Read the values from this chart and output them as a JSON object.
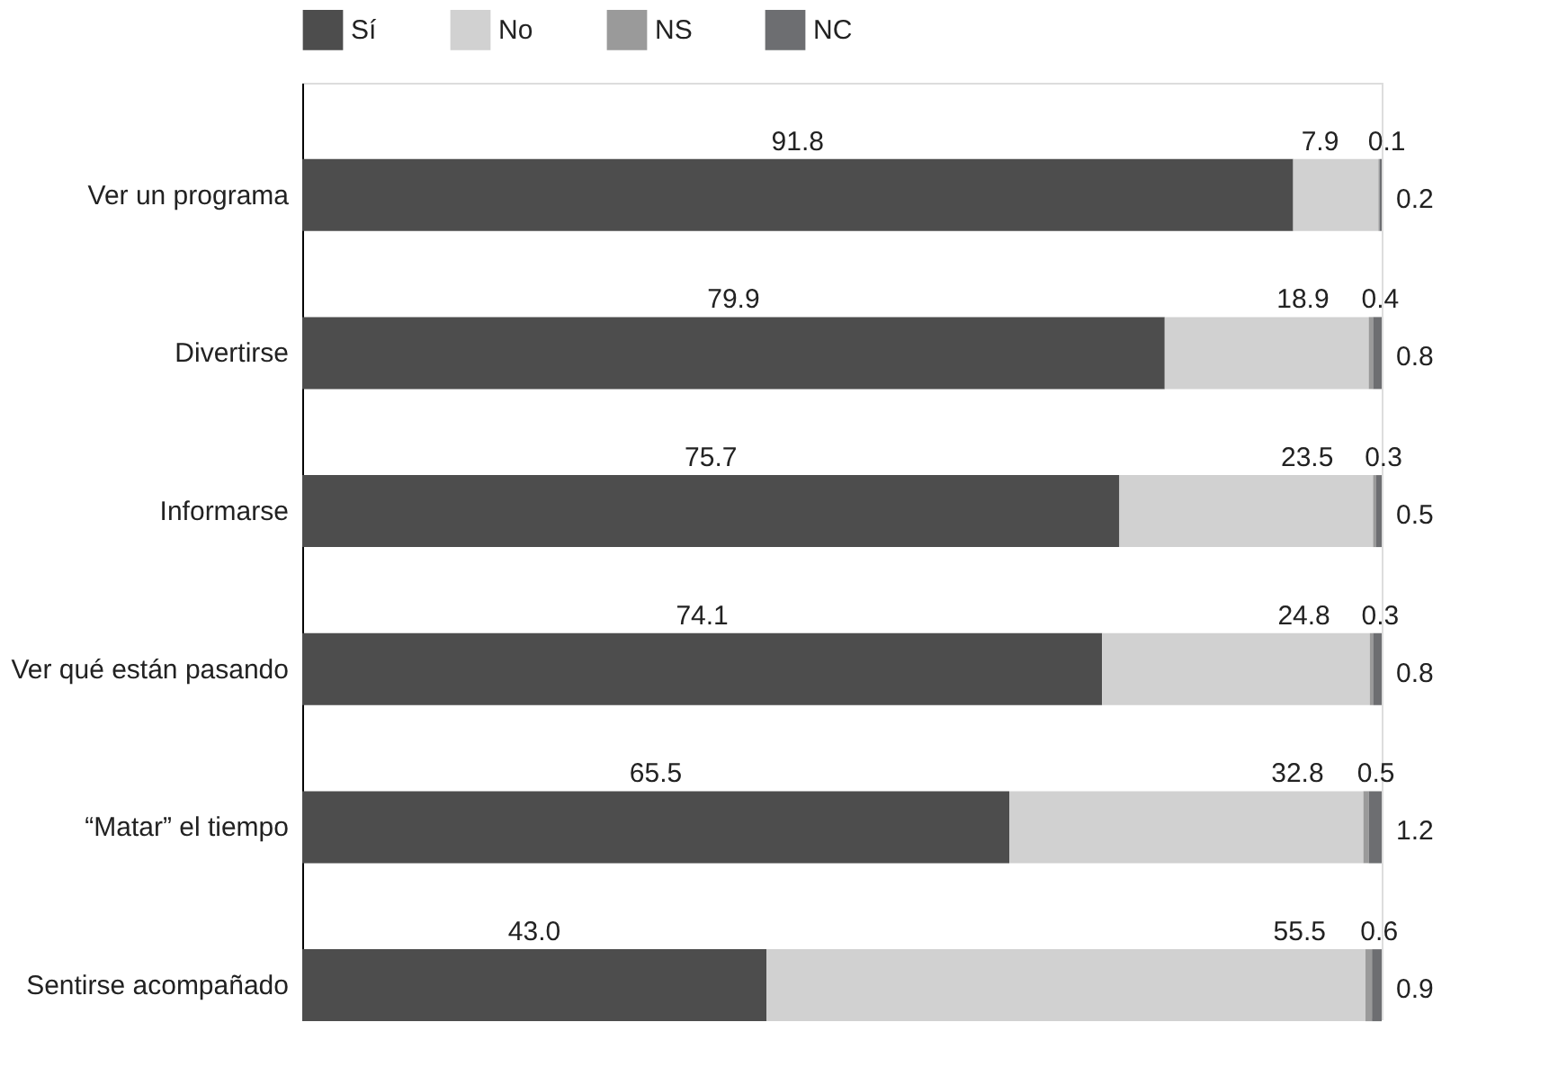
{
  "chart_data": {
    "type": "bar",
    "orientation": "horizontal",
    "stacked": true,
    "categories": [
      "Ver un programa",
      "Divertirse",
      "Informarse",
      "Ver qué están pasando",
      "“Matar” el tiempo",
      "Sentirse acompañado"
    ],
    "series": [
      {
        "name": "Sí",
        "color": "#4d4d4d",
        "values": [
          91.8,
          79.9,
          75.7,
          74.1,
          65.5,
          43.0
        ],
        "value_labels": [
          "91.8",
          "79.9",
          "75.7",
          "74.1",
          "65.5",
          "43.0"
        ]
      },
      {
        "name": "No",
        "color": "#d1d1d1",
        "values": [
          7.9,
          18.9,
          23.5,
          24.8,
          32.8,
          55.5
        ],
        "value_labels": [
          "7.9",
          "18.9",
          "23.5",
          "24.8",
          "32.8",
          "55.5"
        ]
      },
      {
        "name": "NS",
        "color": "#9a9a9a",
        "values": [
          0.1,
          0.4,
          0.3,
          0.3,
          0.5,
          0.6
        ],
        "value_labels": [
          "0.1",
          "0.4",
          "0.3",
          "0.3",
          "0.5",
          "0.6"
        ]
      },
      {
        "name": "NC",
        "color": "#6d6e71",
        "values": [
          0.2,
          0.8,
          0.5,
          0.8,
          1.2,
          0.9
        ],
        "value_labels": [
          "0.2",
          "0.8",
          "0.5",
          "0.8",
          "1.2",
          "0.9"
        ]
      }
    ],
    "xlim": [
      0,
      100
    ],
    "legend": "top",
    "grid": false,
    "tick_labels": "y"
  }
}
